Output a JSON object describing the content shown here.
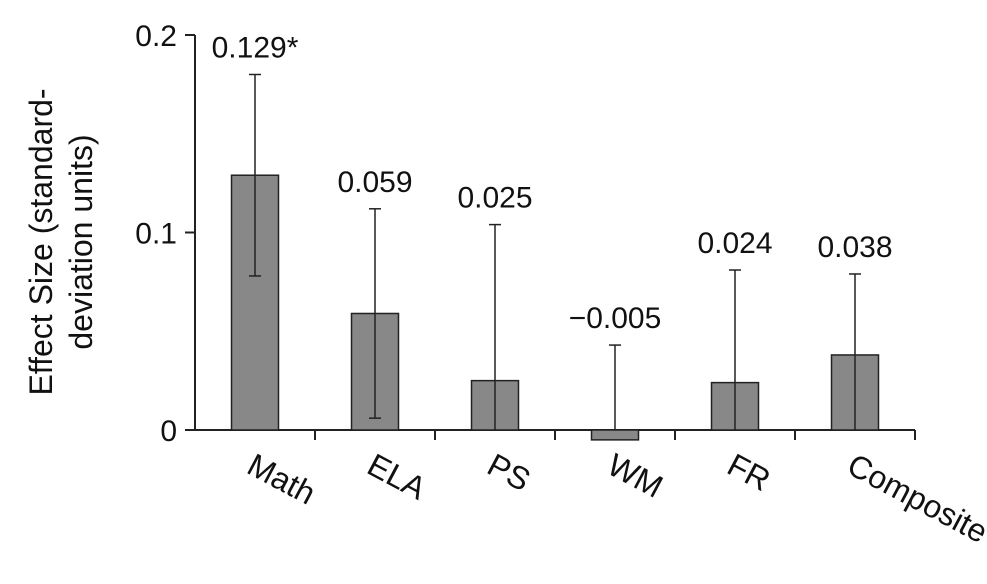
{
  "chart_data": {
    "type": "bar",
    "title": "",
    "xlabel": "",
    "ylabel_lines": [
      "Effect Size (standard-",
      "deviation units)"
    ],
    "categories": [
      "Math",
      "ELA",
      "PS",
      "WM",
      "FR",
      "Composite"
    ],
    "values": [
      0.129,
      0.059,
      0.025,
      -0.005,
      0.024,
      0.038
    ],
    "data_labels": [
      "0.129*",
      "0.059",
      "0.025",
      "−0.005",
      "0.024",
      "0.038"
    ],
    "error_low": [
      0.078,
      0.006,
      0.0,
      0.0,
      0.0,
      0.0
    ],
    "error_high": [
      0.18,
      0.112,
      0.104,
      0.043,
      0.081,
      0.079
    ],
    "ylim": [
      0,
      0.2
    ],
    "yticks": [
      0,
      0.1,
      0.2
    ],
    "ytick_labels": [
      "0",
      "0.1",
      "0.2"
    ],
    "grid": false,
    "legend": "none",
    "colors": {
      "bar_fill": "#888888",
      "bar_stroke": "#222222",
      "axis": "#222222"
    }
  }
}
